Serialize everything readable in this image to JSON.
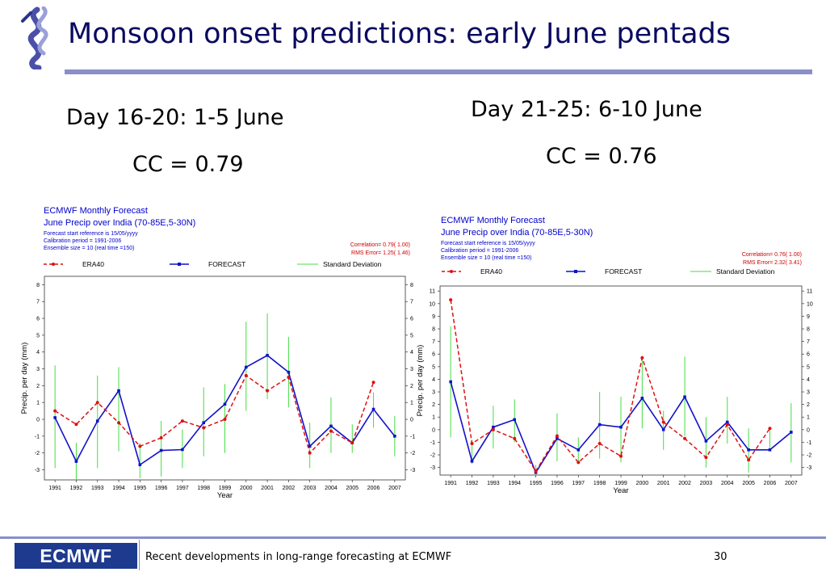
{
  "slide": {
    "title": "Monsoon onset predictions: early June pentads",
    "left_heading": "Day 16-20: 1-5 June",
    "left_cc": "CC = 0.79",
    "right_heading": "Day 21-25: 6-10 June",
    "right_cc": "CC = 0.76",
    "footer_logo": "ECMWF",
    "footer_text": "Recent developments in long-range forecasting at ECMWF",
    "page_number": "30"
  },
  "colors": {
    "era40": "#dd1111",
    "forecast": "#1111cc",
    "stddev": "#44dd44",
    "header": "#0000cc",
    "stats": "#cc0000",
    "title_rule": "#8a8fc8",
    "footer_box": "#1d3a8f"
  },
  "chart_data": [
    {
      "type": "line",
      "header": {
        "line1": "ECMWF Monthly Forecast",
        "line2": "June Precip over India (70-85E,5-30N)",
        "line3": "Forecast start reference is 15/05/yyyy",
        "line4": "Calibration period = 1991-2006",
        "line5": "Ensemble size = 10    (real time =150)"
      },
      "stats": {
        "correlation": "Correlation= 0.79( 1.00)",
        "rms": "RMS Error= 1.25( 1.46)"
      },
      "legend": [
        "ERA40",
        "FORECAST",
        "Standard Deviation"
      ],
      "xlabel": "Year",
      "ylabel": "Precip. per day (mm)",
      "ylim": [
        -3.6,
        8.5
      ],
      "yticks": [
        -3,
        -2,
        -1,
        0,
        1,
        2,
        3,
        4,
        5,
        6,
        7,
        8
      ],
      "x": [
        1991,
        1992,
        1993,
        1994,
        1995,
        1996,
        1997,
        1998,
        1999,
        2000,
        2001,
        2002,
        2003,
        2004,
        2005,
        2006,
        2007
      ],
      "series": [
        {
          "name": "ERA40",
          "values": [
            0.5,
            -0.3,
            1.0,
            -0.2,
            -1.6,
            -1.1,
            -0.1,
            -0.5,
            0.0,
            2.6,
            1.7,
            2.5,
            -2.0,
            -0.7,
            -1.4,
            2.2,
            null
          ]
        },
        {
          "name": "FORECAST",
          "values": [
            0.1,
            -2.5,
            -0.1,
            1.7,
            -2.7,
            -1.85,
            -1.8,
            -0.2,
            0.9,
            3.1,
            3.8,
            2.8,
            -1.6,
            -0.4,
            -1.4,
            0.6,
            -1.0
          ]
        },
        {
          "name": "Standard Deviation",
          "low": [
            -2.9,
            -3.6,
            -2.9,
            -1.9,
            -3.5,
            -3.4,
            -2.9,
            -2.2,
            -2.0,
            0.5,
            1.2,
            0.7,
            -2.9,
            -2.0,
            -2.0,
            -0.5,
            -2.2
          ],
          "high": [
            3.2,
            -1.4,
            2.6,
            3.1,
            -1.4,
            -0.1,
            -0.6,
            1.9,
            2.1,
            5.8,
            6.3,
            4.9,
            -0.2,
            1.3,
            -0.3,
            1.6,
            0.2
          ]
        }
      ]
    },
    {
      "type": "line",
      "header": {
        "line1": "ECMWF Monthly Forecast",
        "line2": "June Precip over India (70-85E,5-30N)",
        "line3": "Forecast start reference is 15/05/yyyy",
        "line4": "Calibration period = 1991-2006",
        "line5": "Ensemble size = 10    (real time =150)"
      },
      "stats": {
        "correlation": "Correlation= 0.76( 1.00)",
        "rms": "RMS Error= 2.32( 3.41)"
      },
      "legend": [
        "ERA40",
        "FORECAST",
        "Standard Deviation"
      ],
      "xlabel": "Year",
      "ylabel": "Precip. per day (mm)",
      "ylim": [
        -3.6,
        11.4
      ],
      "yticks": [
        -3,
        -2,
        -1,
        0,
        1,
        2,
        3,
        4,
        5,
        6,
        7,
        8,
        9,
        10,
        11
      ],
      "x": [
        1991,
        1992,
        1993,
        1994,
        1995,
        1996,
        1997,
        1998,
        1999,
        2000,
        2001,
        2002,
        2003,
        2004,
        2005,
        2006,
        2007
      ],
      "series": [
        {
          "name": "ERA40",
          "values": [
            10.3,
            -1.1,
            0.0,
            -0.7,
            -3.3,
            -0.5,
            -2.6,
            -1.1,
            -2.1,
            5.7,
            0.6,
            -0.7,
            -2.2,
            0.4,
            -2.4,
            0.1,
            null
          ]
        },
        {
          "name": "FORECAST",
          "values": [
            3.8,
            -2.5,
            0.2,
            0.8,
            -3.4,
            -0.7,
            -1.6,
            0.4,
            0.2,
            2.5,
            0.0,
            2.6,
            -0.9,
            0.6,
            -1.6,
            -1.6,
            -0.2
          ]
        },
        {
          "name": "Standard Deviation",
          "low": [
            -0.6,
            -2.7,
            -1.5,
            -1.0,
            -3.5,
            -2.5,
            -2.5,
            -2.3,
            -2.6,
            0.1,
            -1.6,
            -0.5,
            -3.0,
            -1.1,
            -3.4,
            -1.6,
            -2.6
          ],
          "high": [
            8.2,
            -0.8,
            1.9,
            2.4,
            -2.8,
            1.3,
            -0.6,
            3.0,
            2.6,
            5.6,
            1.5,
            5.8,
            1.0,
            2.6,
            0.1,
            0.0,
            2.1
          ]
        }
      ]
    }
  ]
}
